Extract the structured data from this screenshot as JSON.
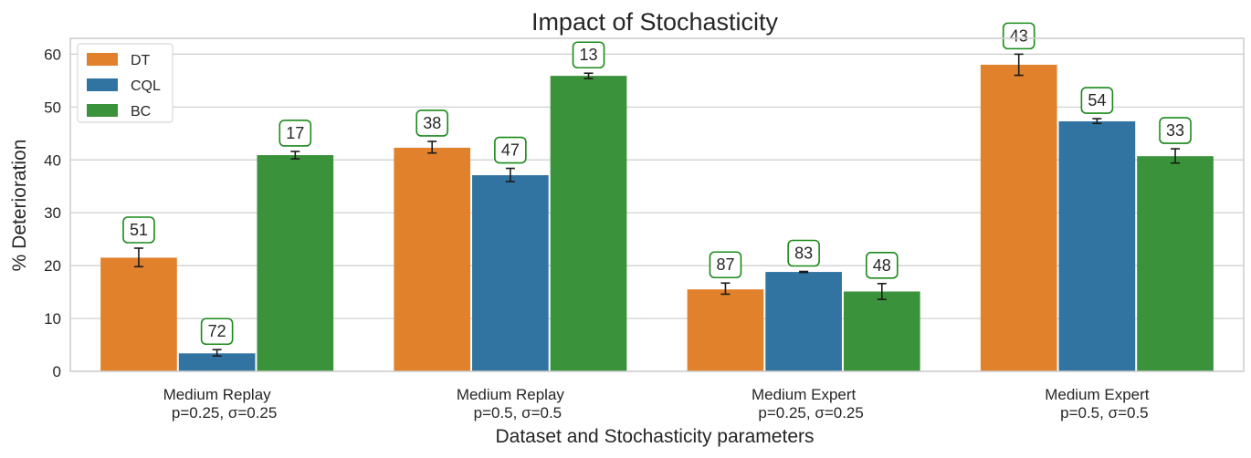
{
  "chart_data": {
    "type": "bar",
    "title": "Impact of Stochasticity",
    "xlabel": "Dataset and Stochasticity parameters",
    "ylabel": "% Deterioration",
    "ylim": [
      0,
      63
    ],
    "yticks": [
      0,
      10,
      20,
      30,
      40,
      50,
      60
    ],
    "grid": true,
    "legend_position": "top-left",
    "categories": [
      [
        "Medium Replay",
        "p=0.25, σ=0.25"
      ],
      [
        "Medium Replay",
        "p=0.5, σ=0.5"
      ],
      [
        "Medium Expert",
        "p=0.25, σ=0.25"
      ],
      [
        "Medium Expert",
        "p=0.5, σ=0.5"
      ]
    ],
    "series": [
      {
        "name": "DT",
        "color": "#e1812c",
        "values": [
          21.5,
          42.3,
          15.5,
          58.0
        ],
        "err_low": [
          19.8,
          41.3,
          14.6,
          56.0
        ],
        "err_high": [
          23.3,
          43.5,
          16.7,
          60.0
        ],
        "labels": [
          "51",
          "38",
          "87",
          "43"
        ]
      },
      {
        "name": "CQL",
        "color": "#3274a1",
        "values": [
          3.4,
          37.1,
          18.8,
          47.3
        ],
        "err_low": [
          2.9,
          35.9,
          18.7,
          46.9
        ],
        "err_high": [
          4.1,
          38.4,
          18.9,
          47.8
        ],
        "labels": [
          "72",
          "47",
          "83",
          "54"
        ]
      },
      {
        "name": "BC",
        "color": "#3a923a",
        "values": [
          40.9,
          55.9,
          15.1,
          40.7
        ],
        "err_low": [
          40.2,
          55.4,
          13.6,
          39.4
        ],
        "err_high": [
          41.6,
          56.4,
          16.6,
          42.1
        ],
        "labels": [
          "17",
          "13",
          "48",
          "33"
        ]
      }
    ],
    "annotation_box_color": "#1a8a1a"
  }
}
